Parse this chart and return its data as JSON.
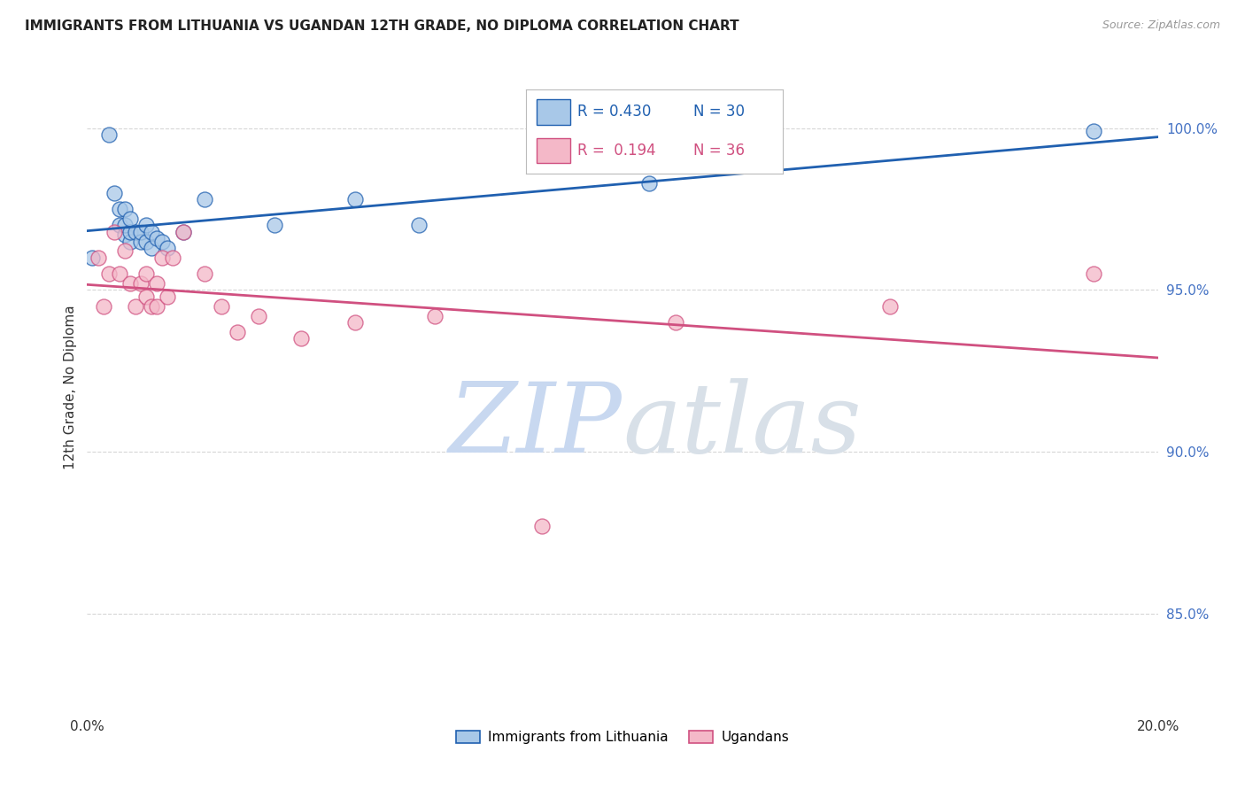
{
  "title": "IMMIGRANTS FROM LITHUANIA VS UGANDAN 12TH GRADE, NO DIPLOMA CORRELATION CHART",
  "source": "Source: ZipAtlas.com",
  "ylabel_label": "12th Grade, No Diploma",
  "xlim": [
    0.0,
    0.2
  ],
  "ylim": [
    0.82,
    1.02
  ],
  "yticks": [
    0.85,
    0.9,
    0.95,
    1.0
  ],
  "ytick_labels": [
    "85.0%",
    "90.0%",
    "95.0%",
    "100.0%"
  ],
  "xticks": [
    0.0,
    0.04,
    0.08,
    0.12,
    0.16,
    0.2
  ],
  "xtick_labels": [
    "0.0%",
    "",
    "",
    "",
    "",
    "20.0%"
  ],
  "blue_R": 0.43,
  "blue_N": 30,
  "pink_R": 0.194,
  "pink_N": 36,
  "blue_color": "#A8C8E8",
  "pink_color": "#F4B8C8",
  "blue_line_color": "#2060B0",
  "pink_line_color": "#D05080",
  "watermark_zip": "ZIP",
  "watermark_atlas": "atlas",
  "watermark_color_zip": "#C8D8F0",
  "watermark_color_atlas": "#D0D8E8",
  "blue_x": [
    0.001,
    0.004,
    0.005,
    0.006,
    0.006,
    0.007,
    0.007,
    0.007,
    0.008,
    0.008,
    0.008,
    0.009,
    0.01,
    0.01,
    0.011,
    0.011,
    0.012,
    0.012,
    0.013,
    0.014,
    0.015,
    0.018,
    0.022,
    0.035,
    0.05,
    0.062,
    0.105,
    0.188
  ],
  "blue_y": [
    0.96,
    0.998,
    0.98,
    0.97,
    0.975,
    0.967,
    0.97,
    0.975,
    0.965,
    0.968,
    0.972,
    0.968,
    0.965,
    0.968,
    0.965,
    0.97,
    0.963,
    0.968,
    0.966,
    0.965,
    0.963,
    0.968,
    0.978,
    0.97,
    0.978,
    0.97,
    0.983,
    0.999
  ],
  "pink_x": [
    0.002,
    0.003,
    0.004,
    0.005,
    0.006,
    0.007,
    0.008,
    0.009,
    0.01,
    0.011,
    0.011,
    0.012,
    0.013,
    0.013,
    0.014,
    0.015,
    0.016,
    0.018,
    0.022,
    0.025,
    0.028,
    0.032,
    0.04,
    0.05,
    0.065,
    0.085,
    0.11,
    0.15,
    0.188
  ],
  "pink_y": [
    0.96,
    0.945,
    0.955,
    0.968,
    0.955,
    0.962,
    0.952,
    0.945,
    0.952,
    0.948,
    0.955,
    0.945,
    0.952,
    0.945,
    0.96,
    0.948,
    0.96,
    0.968,
    0.955,
    0.945,
    0.937,
    0.942,
    0.935,
    0.94,
    0.942,
    0.877,
    0.94,
    0.945,
    0.955
  ],
  "legend_blue_label": "Immigrants from Lithuania",
  "legend_pink_label": "Ugandans",
  "background_color": "#FFFFFF",
  "grid_color": "#CCCCCC"
}
